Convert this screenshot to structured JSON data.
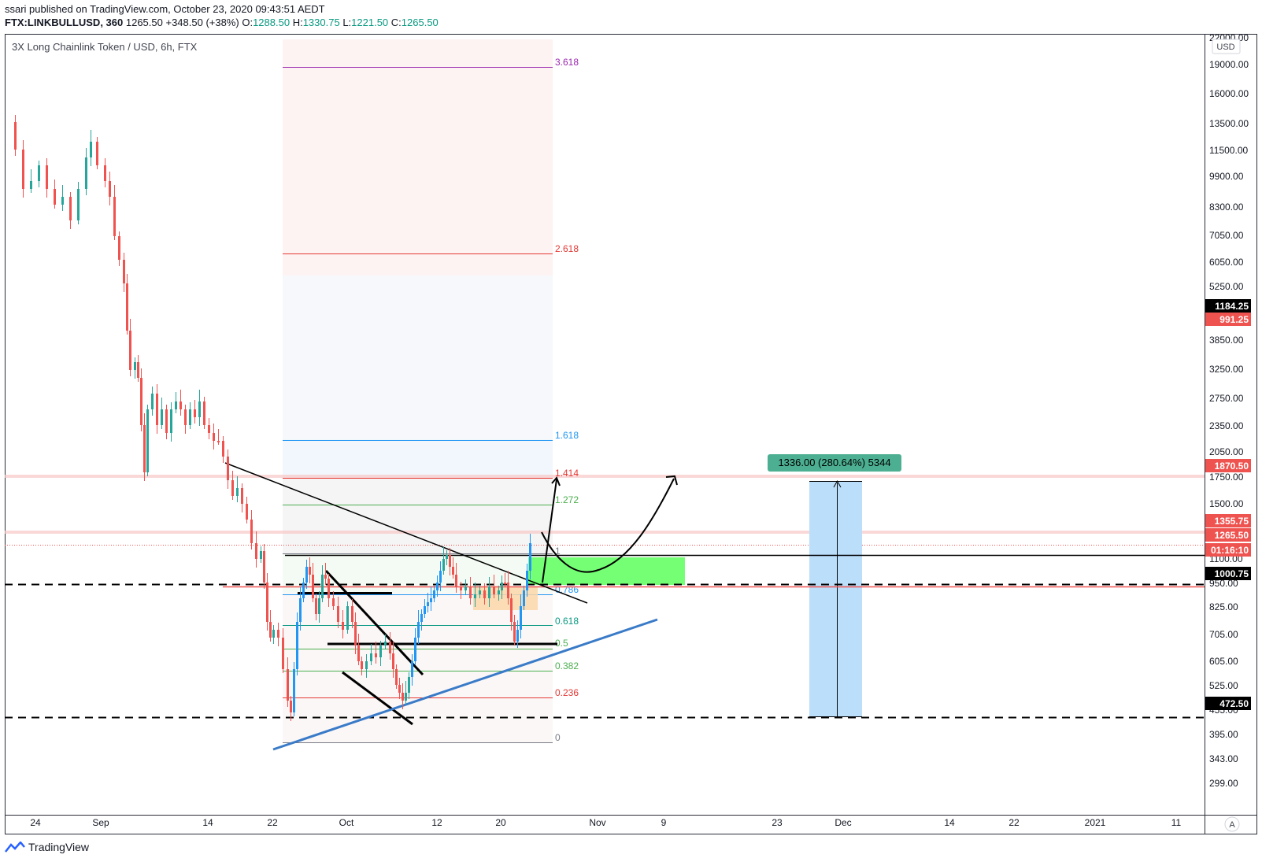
{
  "header": {
    "publisher": "ssari published on TradingView.com, October 23, 2020 09:43:51 AEDT",
    "symbol": "FTX:LINKBULLUSD, 360",
    "last": "1265.50",
    "change": "+348.50 (+38%)",
    "o_label": "O:",
    "o_value": "1288.50",
    "h_label": "H:",
    "h_value": "1330.75",
    "l_label": "L:",
    "l_value": "1221.50",
    "c_label": "C:",
    "c_value": "1265.50"
  },
  "chart_title": "3X Long Chainlink Token / USD, 6h, FTX",
  "currency_button": "USD",
  "auto_button": "A",
  "footer_brand": "TradingView",
  "colors": {
    "up": "#26a69a",
    "down": "#ef5350",
    "blue_up": "#2196f3",
    "fib_pink": "#fce8e8",
    "green_zone": "#66ff66",
    "measure": "#bbdefb",
    "measure_label_bg": "#4caf91"
  },
  "price_axis": {
    "ticks": [
      "22000.00",
      "19000.00",
      "16000.00",
      "13500.00",
      "11500.00",
      "9900.00",
      "8300.00",
      "7050.00",
      "6050.00",
      "5250.00",
      "3850.00",
      "3250.00",
      "2750.00",
      "2350.00",
      "2050.00",
      "1750.00",
      "1500.00",
      "1100.00",
      "950.00",
      "825.00",
      "705.00",
      "605.00",
      "525.00",
      "455.00",
      "395.00",
      "343.00",
      "299.00"
    ],
    "labels": [
      {
        "text": "1184.25",
        "kind": "black"
      },
      {
        "text": "991.25",
        "kind": "red"
      },
      {
        "text": "1870.50",
        "kind": "red"
      },
      {
        "text": "1355.75",
        "kind": "red"
      },
      {
        "text": "1265.50",
        "kind": "red"
      },
      {
        "text": "01:16:10",
        "kind": "red"
      },
      {
        "text": "1000.75",
        "kind": "black"
      },
      {
        "text": "472.50",
        "kind": "black"
      }
    ]
  },
  "time_axis": {
    "ticks": [
      "24",
      "Sep",
      "14",
      "22",
      "Oct",
      "12",
      "20",
      "Nov",
      "9",
      "23",
      "Dec",
      "14",
      "22",
      "2021",
      "11"
    ]
  },
  "fib_levels": [
    {
      "label": "3.618",
      "color": "#9c27b0"
    },
    {
      "label": "2.618",
      "color": "#e53935"
    },
    {
      "label": "1.618",
      "color": "#2196f3"
    },
    {
      "label": "1.414",
      "color": "#e53935"
    },
    {
      "label": "1.272",
      "color": "#4caf50"
    },
    {
      "label": "1",
      "color": "#787b86"
    },
    {
      "label": "0.786",
      "color": "#2196f3"
    },
    {
      "label": "0.618",
      "color": "#089981"
    },
    {
      "label": "0.5",
      "color": "#4caf50"
    },
    {
      "label": "0.382",
      "color": "#4caf50"
    },
    {
      "label": "0.236",
      "color": "#e53935"
    },
    {
      "label": "0",
      "color": "#787b86"
    }
  ],
  "measure_label": "1336.00 (280.64%) 5344"
}
